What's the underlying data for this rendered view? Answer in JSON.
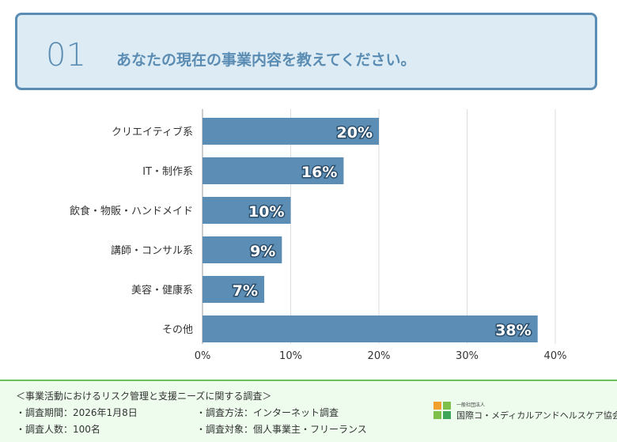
{
  "header": {
    "number": "01",
    "question": "あなたの現在の事業内容を教えてください。"
  },
  "chart_data": {
    "type": "bar",
    "orientation": "horizontal",
    "categories": [
      "クリエイティブ系",
      "IT・制作系",
      "飲食・物販・ハンドメイド",
      "講師・コンサル系",
      "美容・健康系",
      "その他"
    ],
    "values": [
      20,
      16,
      10,
      9,
      7,
      38
    ],
    "data_labels": [
      "20%",
      "16%",
      "10%",
      "9%",
      "7%",
      "38%"
    ],
    "xlim": [
      0,
      40
    ],
    "xticks": [
      "0%",
      "10%",
      "20%",
      "30%",
      "40%"
    ],
    "grid": true,
    "bar_color": "#5b8db5"
  },
  "footer": {
    "title": "＜事業活動におけるリスク管理と支援ニーズに関する調査＞",
    "period": "・調査期間：2026年1月8日",
    "method": "・調査方法：インターネット調査",
    "count": "・調査人数：100名",
    "target": "・調査対象：個人事業主・フリーランス",
    "org_small": "一般社団法人",
    "org": "国際コ・メディカルアンドヘルスケア協会"
  }
}
